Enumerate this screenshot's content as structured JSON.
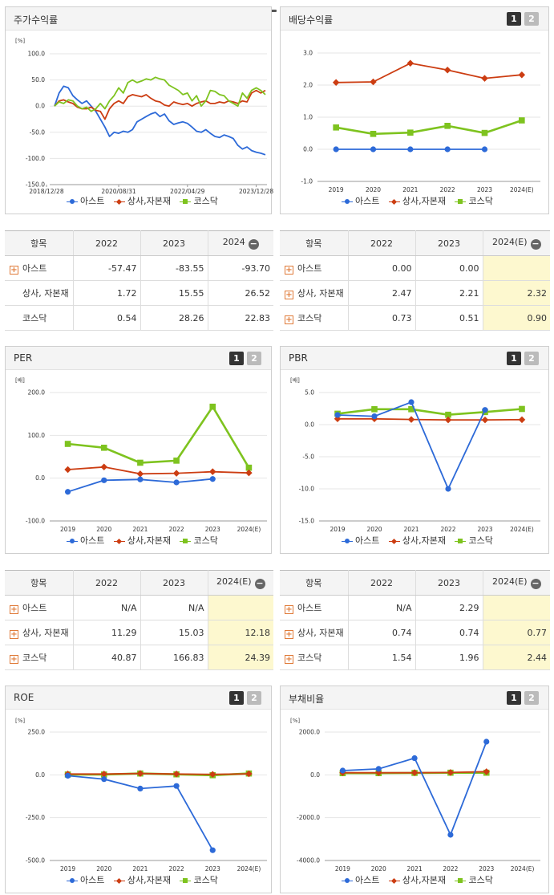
{
  "colors": {
    "ast": "#2d6ad8",
    "sector": "#cc3d12",
    "kosdaq": "#7ec31f"
  },
  "legend": [
    "아스트",
    "상사,자본재",
    "코스닥"
  ],
  "panels": {
    "stock": {
      "title": "주가수익률",
      "unit": "[%]"
    },
    "dividend": {
      "title": "배당수익률",
      "unit": ""
    },
    "per": {
      "title": "PER",
      "unit": "[배]"
    },
    "pbr": {
      "title": "PBR",
      "unit": "[배]"
    },
    "roe": {
      "title": "ROE",
      "unit": "[%]"
    },
    "debt": {
      "title": "부채비율",
      "unit": "[%]"
    }
  },
  "pager": {
    "p1": "1",
    "p2": "2"
  },
  "tables": {
    "stock": {
      "headers": [
        "항목",
        "2022",
        "2023",
        "2024"
      ],
      "rows": [
        {
          "name": "아스트",
          "plus": true,
          "vals": [
            "-57.47",
            "-83.55",
            "-93.70"
          ]
        },
        {
          "name": "상사, 자본재",
          "plus": false,
          "vals": [
            "1.72",
            "15.55",
            "26.52"
          ]
        },
        {
          "name": "코스닥",
          "plus": false,
          "vals": [
            "0.54",
            "28.26",
            "22.83"
          ]
        }
      ]
    },
    "dividend": {
      "headers": [
        "항목",
        "2022",
        "2023",
        "2024(E)"
      ],
      "rows": [
        {
          "name": "아스트",
          "plus": true,
          "vals": [
            "0.00",
            "0.00",
            ""
          ]
        },
        {
          "name": "상사, 자본재",
          "plus": true,
          "vals": [
            "2.47",
            "2.21",
            "2.32"
          ]
        },
        {
          "name": "코스닥",
          "plus": true,
          "vals": [
            "0.73",
            "0.51",
            "0.90"
          ]
        }
      ]
    },
    "per": {
      "headers": [
        "항목",
        "2022",
        "2023",
        "2024(E)"
      ],
      "rows": [
        {
          "name": "아스트",
          "plus": true,
          "vals": [
            "N/A",
            "N/A",
            ""
          ]
        },
        {
          "name": "상사, 자본재",
          "plus": true,
          "vals": [
            "11.29",
            "15.03",
            "12.18"
          ]
        },
        {
          "name": "코스닥",
          "plus": true,
          "vals": [
            "40.87",
            "166.83",
            "24.39"
          ]
        }
      ]
    },
    "pbr": {
      "headers": [
        "항목",
        "2022",
        "2023",
        "2024(E)"
      ],
      "rows": [
        {
          "name": "아스트",
          "plus": true,
          "vals": [
            "N/A",
            "2.29",
            ""
          ]
        },
        {
          "name": "상사, 자본재",
          "plus": true,
          "vals": [
            "0.74",
            "0.74",
            "0.77"
          ]
        },
        {
          "name": "코스닥",
          "plus": true,
          "vals": [
            "1.54",
            "1.96",
            "2.44"
          ]
        }
      ]
    }
  },
  "chart_data": [
    {
      "id": "stock",
      "type": "line",
      "title": "주가수익률",
      "ylabel": "[%]",
      "ylim": [
        -150,
        100
      ],
      "yticks": [
        100,
        50,
        0,
        -50,
        -100,
        -150
      ],
      "xticklabels": [
        "2018/12/28",
        "2020/08/31",
        "2022/04/29",
        "2023/12/28"
      ],
      "series": [
        {
          "name": "아스트",
          "values": [
            0,
            25,
            38,
            35,
            20,
            12,
            5,
            10,
            0,
            -10,
            -25,
            -40,
            -58,
            -50,
            -52,
            -48,
            -50,
            -45,
            -30,
            -25,
            -20,
            -15,
            -12,
            -20,
            -15,
            -28,
            -35,
            -32,
            -30,
            -33,
            -40,
            -48,
            -50,
            -45,
            -52,
            -58,
            -60,
            -55,
            -58,
            -62,
            -75,
            -82,
            -78,
            -85,
            -88,
            -90,
            -93
          ]
        },
        {
          "name": "상사,자본재",
          "values": [
            0,
            10,
            12,
            8,
            5,
            -2,
            -5,
            -5,
            -2,
            -8,
            -10,
            -25,
            -5,
            5,
            10,
            5,
            18,
            22,
            20,
            18,
            22,
            15,
            10,
            8,
            2,
            0,
            8,
            5,
            3,
            5,
            0,
            5,
            8,
            10,
            5,
            5,
            8,
            6,
            10,
            8,
            5,
            10,
            8,
            25,
            30,
            25,
            30
          ]
        },
        {
          "name": "코스닥",
          "values": [
            0,
            8,
            5,
            12,
            10,
            0,
            -5,
            -2,
            -10,
            -5,
            5,
            -5,
            10,
            20,
            35,
            25,
            45,
            50,
            45,
            48,
            52,
            50,
            55,
            52,
            50,
            40,
            35,
            30,
            22,
            25,
            10,
            20,
            0,
            10,
            30,
            28,
            22,
            20,
            10,
            5,
            0,
            25,
            15,
            30,
            35,
            30,
            22
          ]
        }
      ]
    },
    {
      "id": "dividend",
      "type": "line",
      "title": "배당수익률",
      "ylim": [
        -1.0,
        3.0
      ],
      "yticks": [
        3.0,
        2.0,
        1.0,
        0.0,
        -1.0
      ],
      "categories": [
        "2019",
        "2020",
        "2021",
        "2022",
        "2023",
        "2024(E)"
      ],
      "series": [
        {
          "name": "아스트",
          "values": [
            0.0,
            0.0,
            0.0,
            0.0,
            0.0,
            null
          ]
        },
        {
          "name": "상사,자본재",
          "values": [
            2.08,
            2.1,
            2.68,
            2.47,
            2.21,
            2.32
          ]
        },
        {
          "name": "코스닥",
          "values": [
            0.68,
            0.48,
            0.52,
            0.73,
            0.51,
            0.9
          ]
        }
      ]
    },
    {
      "id": "per",
      "type": "line",
      "title": "PER",
      "ylabel": "[배]",
      "ylim": [
        -100,
        200
      ],
      "yticks": [
        200,
        100,
        0,
        -100
      ],
      "categories": [
        "2019",
        "2020",
        "2021",
        "2022",
        "2023",
        "2024(E)"
      ],
      "series": [
        {
          "name": "아스트",
          "values": [
            -32,
            -5,
            -3,
            -10,
            -2,
            null
          ]
        },
        {
          "name": "상사,자본재",
          "values": [
            20,
            26,
            10,
            11.29,
            15.03,
            12.18
          ]
        },
        {
          "name": "코스닥",
          "values": [
            80,
            71,
            36,
            40.87,
            166.83,
            24.39
          ]
        }
      ]
    },
    {
      "id": "pbr",
      "type": "line",
      "title": "PBR",
      "ylabel": "[배]",
      "ylim": [
        -15,
        5
      ],
      "yticks": [
        5.0,
        0.0,
        -5.0,
        -10.0,
        -15.0
      ],
      "categories": [
        "2019",
        "2020",
        "2021",
        "2022",
        "2023",
        "2024(E)"
      ],
      "series": [
        {
          "name": "아스트",
          "values": [
            1.5,
            1.3,
            3.5,
            -10,
            2.29,
            null
          ]
        },
        {
          "name": "상사,자본재",
          "values": [
            0.9,
            0.9,
            0.8,
            0.74,
            0.74,
            0.77
          ]
        },
        {
          "name": "코스닥",
          "values": [
            1.7,
            2.4,
            2.4,
            1.54,
            1.96,
            2.44
          ]
        }
      ]
    },
    {
      "id": "roe",
      "type": "line",
      "title": "ROE",
      "ylabel": "[%]",
      "ylim": [
        -500,
        250
      ],
      "yticks": [
        250,
        0,
        -250,
        -500
      ],
      "categories": [
        "2019",
        "2020",
        "2021",
        "2022",
        "2023",
        "2024(E)"
      ],
      "series": [
        {
          "name": "아스트",
          "values": [
            -5,
            -25,
            -80,
            -65,
            -440,
            null
          ]
        },
        {
          "name": "상사,자본재",
          "values": [
            5,
            5,
            8,
            5,
            3,
            6
          ]
        },
        {
          "name": "코스닥",
          "values": [
            2,
            2,
            8,
            3,
            -2,
            8
          ]
        }
      ]
    },
    {
      "id": "debt",
      "type": "line",
      "title": "부채비율",
      "ylabel": "[%]",
      "ylim": [
        -4000,
        2000
      ],
      "yticks": [
        2000,
        0,
        -2000,
        -4000
      ],
      "categories": [
        "2019",
        "2020",
        "2021",
        "2022",
        "2023",
        "2024(E)"
      ],
      "series": [
        {
          "name": "아스트",
          "values": [
            200,
            280,
            780,
            -2800,
            1550,
            null
          ]
        },
        {
          "name": "상사,자본재",
          "values": [
            100,
            100,
            100,
            110,
            150,
            null
          ]
        },
        {
          "name": "코스닥",
          "values": [
            80,
            80,
            90,
            100,
            100,
            null
          ]
        }
      ]
    }
  ]
}
